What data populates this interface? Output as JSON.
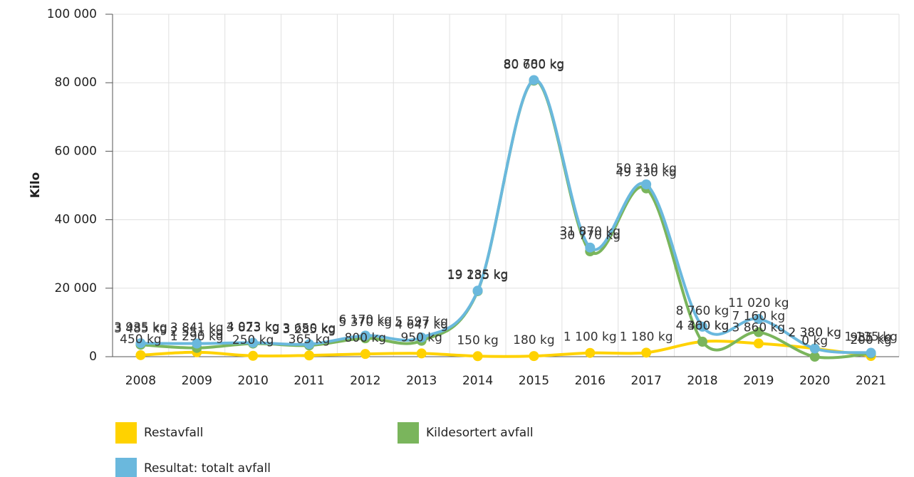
{
  "chart_data": {
    "type": "line",
    "y_axis_label": "Kilo",
    "categories": [
      "2008",
      "2009",
      "2010",
      "2011",
      "2012",
      "2013",
      "2014",
      "2015",
      "2016",
      "2017",
      "2018",
      "2019",
      "2020",
      "2021"
    ],
    "series": [
      {
        "name": "Restavfall",
        "color": "#ffd200",
        "values": [
          450,
          1290,
          250,
          365,
          800,
          950,
          150,
          180,
          1100,
          1180,
          4400,
          3860,
          2380,
          200
        ],
        "value_labels": [
          "450 kg",
          "1 290 kg",
          "250 kg",
          "365 kg",
          "800 kg",
          "950 kg",
          "150 kg",
          "180 kg",
          "1 100 kg",
          "1 180 kg",
          "4 400 kg",
          "3 860 kg",
          "2 380 kg",
          "200 kg"
        ]
      },
      {
        "name": "Kildesortert avfall",
        "color": "#7ab55c",
        "values": [
          3485,
          2551,
          3823,
          3285,
          5370,
          4647,
          19135,
          80600,
          30770,
          49130,
          4360,
          7160,
          0,
          935
        ],
        "value_labels": [
          "3 485 kg",
          "2 551 kg",
          "3 823 kg",
          "3 285 kg",
          "5 370 kg",
          "4 647 kg",
          "19 135 kg",
          "80 600 kg",
          "30 770 kg",
          "49 130 kg",
          "4 360 kg",
          "7 160 kg",
          "0 kg",
          "935 kg"
        ]
      },
      {
        "name": "Resultat: totalt avfall",
        "color": "#6ab8dd",
        "values": [
          3935,
          3841,
          4073,
          3650,
          6170,
          5597,
          19285,
          80780,
          31870,
          50310,
          8760,
          11020,
          2380,
          1135
        ],
        "value_labels": [
          "3 935 kg",
          "3 841 kg",
          "4 073 kg",
          "3 650 kg",
          "6 170 kg",
          "5 597 kg",
          "19 285 kg",
          "80 780 kg",
          "31 870 kg",
          "50 310 kg",
          "8 760 kg",
          "11 020 kg",
          "2 380 kg",
          "1 135 kg"
        ]
      }
    ],
    "ylim": [
      0,
      100000
    ],
    "yticks": [
      0,
      {
        "value": 20000,
        "label": "20 000"
      },
      {
        "value": 40000,
        "label": "40 000"
      },
      {
        "value": 60000,
        "label": "60 000"
      },
      {
        "value": 80000,
        "label": "80 000"
      },
      {
        "value": 100000,
        "label": "100 000"
      }
    ],
    "grid": true
  }
}
